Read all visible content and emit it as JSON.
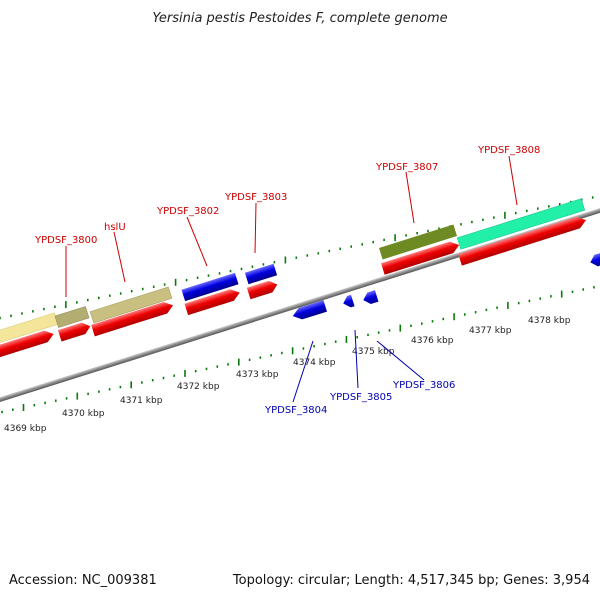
{
  "title": "Yersinia pestis Pestoides F, complete genome",
  "footer": {
    "accession": "Accession: NC_009381",
    "summary": "Topology: circular; Length: 4,517,345 bp; Genes: 3,954"
  },
  "kbp_labels": [
    "4369 kbp",
    "4370 kbp",
    "4371 kbp",
    "4372 kbp",
    "4373 kbp",
    "4374 kbp",
    "4375 kbp",
    "4376 kbp",
    "4377 kbp",
    "4378 kbp"
  ],
  "gene_labels_forward": [
    "YPDSF_3800",
    "hslU",
    "YPDSF_3802",
    "YPDSF_3803",
    "YPDSF_3807",
    "YPDSF_3808"
  ],
  "gene_labels_reverse": [
    "YPDSF_3804",
    "YPDSF_3805",
    "YPDSF_3806"
  ],
  "colors": {
    "backbone": "#8a8a8a",
    "tick": "#0a7a0a",
    "forward_cds": "#ee0000",
    "reverse_cds": "#0000dd",
    "label_forward": "#cc0000",
    "label_reverse": "#0000b0",
    "cog_pale_yellow": "#f3e69a",
    "cog_olive": "#b3ad72",
    "cog_khaki": "#c8bf80",
    "cog_blue": "#0000dd",
    "cog_dark_olive": "#6e8a22",
    "cog_mint": "#22f0a8"
  }
}
